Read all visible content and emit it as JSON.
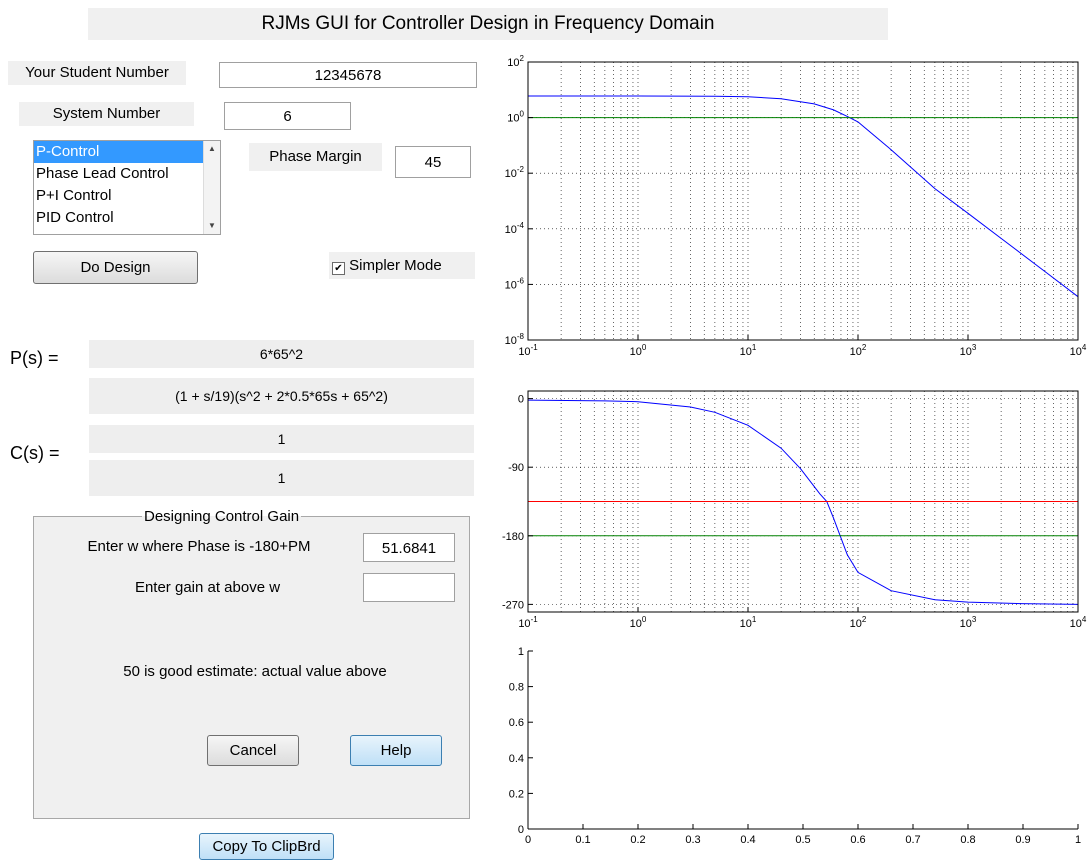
{
  "title": "RJMs GUI for Controller Design in Frequency Domain",
  "student_number": {
    "label": "Your Student Number",
    "value": "12345678"
  },
  "system_number": {
    "label": "System Number",
    "value": "6"
  },
  "control_list": {
    "items": [
      "P-Control",
      "Phase Lead Control",
      "P+I Control",
      "PID Control"
    ],
    "selected": "P-Control"
  },
  "phase_margin": {
    "label": "Phase Margin",
    "value": "45"
  },
  "do_design_label": "Do Design",
  "simpler_mode": {
    "label": "Simpler Mode",
    "checked": true
  },
  "plant": {
    "label": "P(s) =",
    "numerator": "6*65^2",
    "denominator": "(1 + s/19)(s^2 + 2*0.5*65s + 65^2)"
  },
  "controller": {
    "label": "C(s) =",
    "numerator": "1",
    "denominator": "1"
  },
  "gain_panel": {
    "title": "Designing Control Gain",
    "w_label": "Enter w where Phase is -180+PM",
    "w_value": "51.6841",
    "gain_label": "Enter gain at above w",
    "gain_value": "",
    "hint": "50 is good estimate: actual value above",
    "cancel_label": "Cancel",
    "help_label": "Help"
  },
  "copy_label": "Copy To ClipBrd",
  "colors": {
    "curve": "#0000ff",
    "green": "#008000",
    "red": "#ff0000",
    "panel": "#f0f0f0"
  },
  "chart_data": [
    {
      "type": "line",
      "title": "",
      "xscale": "log",
      "yscale": "log",
      "xlim": [
        0.1,
        10000
      ],
      "ylim": [
        1e-08,
        100
      ],
      "x_ticks": [
        "10^-1",
        "10^0",
        "10^1",
        "10^2",
        "10^3",
        "10^4"
      ],
      "y_ticks": [
        "10^-8",
        "10^-6",
        "10^-4",
        "10^-2",
        "10^0",
        "10^2"
      ],
      "grid": true,
      "series": [
        {
          "color": "#0000ff",
          "x": [
            0.1,
            1,
            5,
            10,
            20,
            40,
            60,
            80,
            100,
            200,
            500,
            1000,
            2000,
            5000,
            10000
          ],
          "y": [
            6,
            6,
            5.9,
            5.6,
            4.8,
            3.1,
            1.9,
            1.1,
            0.7,
            0.07,
            0.0028,
            0.00036,
            4.5e-05,
            2.9e-06,
            3.6e-07
          ]
        },
        {
          "color": "#008000",
          "x": [
            0.1,
            10000
          ],
          "y": [
            1,
            1
          ]
        }
      ]
    },
    {
      "type": "line",
      "title": "",
      "xscale": "log",
      "xlim": [
        0.1,
        10000
      ],
      "ylim": [
        -280,
        10
      ],
      "x_ticks": [
        "10^-1",
        "10^0",
        "10^1",
        "10^2",
        "10^3",
        "10^4"
      ],
      "y_ticks": [
        "0",
        "-90",
        "-180",
        "-270"
      ],
      "grid": true,
      "series": [
        {
          "color": "#0000ff",
          "x": [
            0.1,
            0.5,
            1,
            3,
            5,
            10,
            20,
            30,
            45,
            52,
            60,
            80,
            100,
            200,
            500,
            1000,
            3000,
            10000
          ],
          "y": [
            -2,
            -3,
            -4,
            -11,
            -18,
            -35,
            -65,
            -92,
            -125,
            -135,
            -157,
            -205,
            -228,
            -252,
            -264,
            -267,
            -269,
            -270
          ]
        },
        {
          "color": "#ff0000",
          "x": [
            0.1,
            10000
          ],
          "y": [
            -135,
            -135
          ]
        },
        {
          "color": "#008000",
          "x": [
            0.1,
            10000
          ],
          "y": [
            -180,
            -180
          ]
        }
      ]
    },
    {
      "type": "line",
      "title": "",
      "xlim": [
        0,
        1
      ],
      "ylim": [
        0,
        1
      ],
      "x_ticks": [
        "0",
        "0.1",
        "0.2",
        "0.3",
        "0.4",
        "0.5",
        "0.6",
        "0.7",
        "0.8",
        "0.9",
        "1"
      ],
      "y_ticks": [
        "0",
        "0.2",
        "0.4",
        "0.6",
        "0.8",
        "1"
      ],
      "grid": false,
      "series": []
    }
  ]
}
